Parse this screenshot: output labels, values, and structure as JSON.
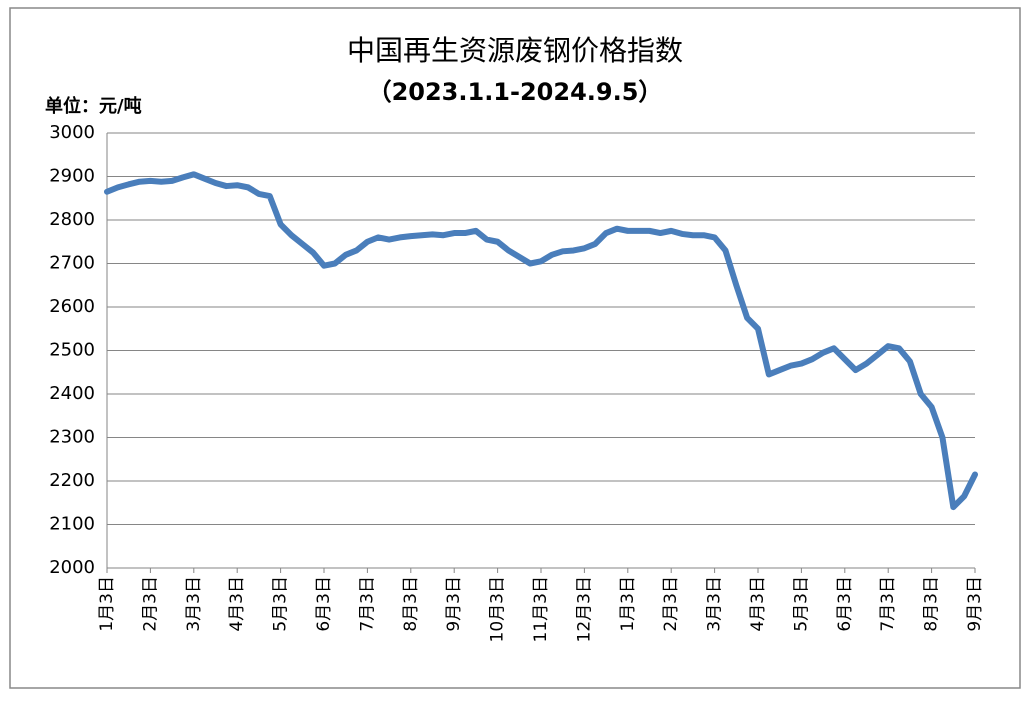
{
  "chart_data": {
    "type": "line",
    "title": "中国再生资源废钢价格指数",
    "subtitle": "（2023.1.1-2024.9.5）",
    "y_unit": "单位：元/吨",
    "categories": [
      "1月3日",
      null,
      null,
      null,
      "2月3日",
      null,
      null,
      null,
      "3月3日",
      null,
      null,
      null,
      "4月3日",
      null,
      null,
      null,
      "5月3日",
      null,
      null,
      null,
      "6月3日",
      null,
      null,
      null,
      "7月3日",
      null,
      null,
      null,
      "8月3日",
      null,
      null,
      null,
      "9月3日",
      null,
      null,
      null,
      "10月3日",
      null,
      null,
      null,
      "11月3日",
      null,
      null,
      null,
      "12月3日",
      null,
      null,
      null,
      "1月3日",
      null,
      null,
      null,
      "2月3日",
      null,
      null,
      null,
      "3月3日",
      null,
      null,
      null,
      "4月3日",
      null,
      null,
      null,
      "5月3日",
      null,
      null,
      null,
      "6月3日",
      null,
      null,
      null,
      "7月3日",
      null,
      null,
      null,
      "8月3日",
      null,
      null,
      null,
      "9月3日"
    ],
    "series": [
      {
        "name": "废钢价格指数",
        "color": "#4a7ebb",
        "values": [
          2865,
          2875,
          2882,
          2888,
          2890,
          2888,
          2890,
          2898,
          2905,
          2895,
          2885,
          2878,
          2880,
          2875,
          2860,
          2855,
          2790,
          2765,
          2745,
          2725,
          2695,
          2700,
          2720,
          2730,
          2750,
          2760,
          2755,
          2760,
          2763,
          2765,
          2767,
          2765,
          2770,
          2770,
          2775,
          2755,
          2750,
          2730,
          2715,
          2700,
          2705,
          2720,
          2728,
          2730,
          2735,
          2745,
          2770,
          2780,
          2775,
          2775,
          2775,
          2770,
          2775,
          2768,
          2765,
          2765,
          2760,
          2730,
          2650,
          2575,
          2550,
          2445,
          2455,
          2465,
          2470,
          2480,
          2495,
          2505,
          2480,
          2455,
          2470,
          2490,
          2510,
          2505,
          2475,
          2400,
          2370,
          2300,
          2140,
          2165,
          2215
        ]
      }
    ],
    "ylim": [
      2000,
      3000
    ],
    "yticks": [
      2000,
      2100,
      2200,
      2300,
      2400,
      2500,
      2600,
      2700,
      2800,
      2900,
      3000
    ],
    "grid": true
  }
}
